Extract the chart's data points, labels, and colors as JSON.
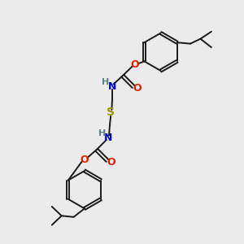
{
  "bg_color": "#ebebeb",
  "bond_color": "#1a1a1a",
  "N_color": "#0000cc",
  "O_color": "#dd2200",
  "S_color": "#999900",
  "H_color": "#5f8080",
  "fig_size": [
    3.0,
    3.0
  ],
  "dpi": 100,
  "xlim": [
    0,
    10
  ],
  "ylim": [
    0,
    10
  ]
}
